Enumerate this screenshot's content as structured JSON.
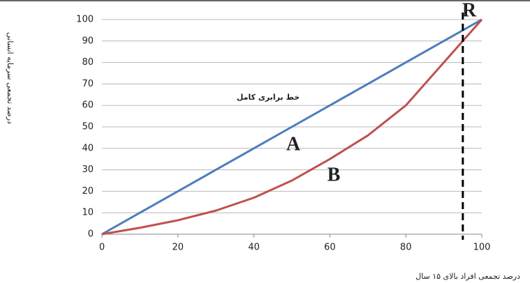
{
  "chart_data": {
    "type": "line",
    "y_label": "درصد تجمعی سرمایه انسانی",
    "x_label": "درصد تجمعی افراد بالای ۱۵ سال",
    "annotations": [
      "خط برابری کامل",
      "A",
      "B",
      "R"
    ],
    "x": [
      0,
      10,
      20,
      30,
      40,
      50,
      60,
      70,
      80,
      90,
      95,
      100
    ],
    "series": [
      {
        "color": "#4a7ebb",
        "values": [
          0,
          10,
          20,
          30,
          40,
          50,
          60,
          70,
          80,
          90,
          95,
          100
        ]
      },
      {
        "color": "#c0504d",
        "values": [
          0,
          3,
          6.5,
          11,
          17,
          25,
          35,
          46,
          60,
          80,
          90,
          100
        ]
      }
    ],
    "vline": 95,
    "xlim": [
      0,
      100
    ],
    "xticks": [
      0,
      20,
      40,
      60,
      80,
      100
    ],
    "ylim": [
      0,
      100
    ],
    "yticks": [
      0,
      10,
      20,
      30,
      40,
      50,
      60,
      70,
      80,
      90,
      100
    ],
    "grid": true
  }
}
